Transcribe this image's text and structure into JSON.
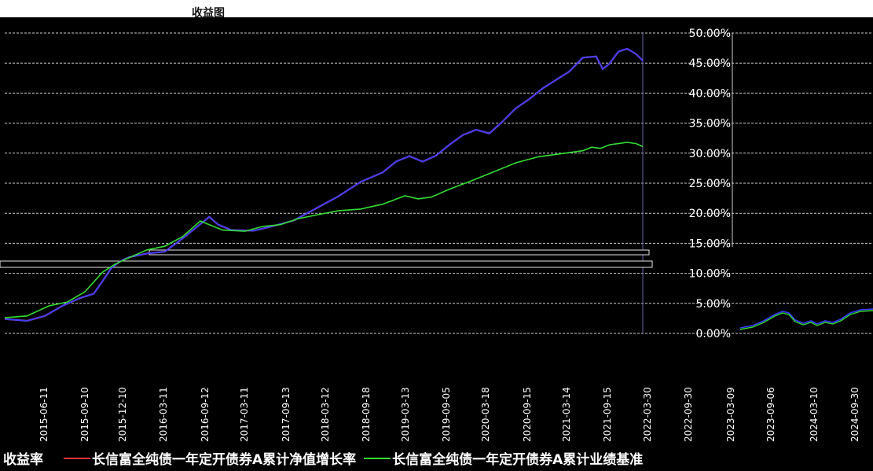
{
  "chart_data": {
    "type": "line",
    "title": "收益图",
    "y_ticks": [
      "0.00%",
      "5.00%",
      "10.00%",
      "15.00%",
      "20.00%",
      "25.00%",
      "30.00%",
      "35.00%",
      "40.00%",
      "45.00%",
      "50.00%"
    ],
    "ylim": [
      0,
      50
    ],
    "x_ticks": [
      "2015-06-11",
      "2015-09-10",
      "2015-12-10",
      "2016-03-11",
      "2016-09-12",
      "2017-03-11",
      "2017-09-13",
      "2018-03-12",
      "2018-09-18",
      "2019-03-13",
      "2019-09-05",
      "2020-03-18",
      "2020-09-15",
      "2021-03-14",
      "2021-09-15",
      "2022-03-30",
      "2022-09-30",
      "2023-03-09",
      "2023-09-06",
      "2024-03-10",
      "2024-09-30"
    ],
    "series": [
      {
        "name": "长信富全纯债一年定开债券A累计净值增长率",
        "color": "#3a3aff",
        "points": [
          [
            0,
            2.4
          ],
          [
            5,
            2.1
          ],
          [
            9,
            2.9
          ],
          [
            13,
            4.6
          ],
          [
            17,
            5.9
          ],
          [
            20,
            6.6
          ],
          [
            22,
            8.7
          ],
          [
            24,
            10.9
          ],
          [
            26,
            12.0
          ],
          [
            28,
            12.7
          ],
          [
            32,
            13.3
          ],
          [
            36,
            13.6
          ],
          [
            40,
            15.8
          ],
          [
            44,
            18.2
          ],
          [
            46,
            19.4
          ],
          [
            48,
            18.1
          ],
          [
            51,
            17.2
          ],
          [
            56,
            17.1
          ],
          [
            60,
            17.8
          ],
          [
            65,
            18.8
          ],
          [
            70,
            20.8
          ],
          [
            75,
            22.8
          ],
          [
            80,
            25.2
          ],
          [
            85,
            26.8
          ],
          [
            88,
            28.6
          ],
          [
            91,
            29.5
          ],
          [
            94,
            28.6
          ],
          [
            97,
            29.6
          ],
          [
            100,
            31.4
          ],
          [
            103,
            33.0
          ],
          [
            106,
            33.9
          ],
          [
            109,
            33.3
          ],
          [
            112,
            35.3
          ],
          [
            115,
            37.5
          ],
          [
            118,
            39.0
          ],
          [
            121,
            40.8
          ],
          [
            124,
            42.2
          ],
          [
            127,
            43.6
          ],
          [
            130,
            45.9
          ],
          [
            133,
            46.1
          ],
          [
            134.5,
            44.0
          ],
          [
            136,
            44.9
          ],
          [
            138,
            46.9
          ],
          [
            140,
            47.4
          ],
          [
            142,
            46.5
          ],
          [
            143.5,
            45.4
          ]
        ]
      },
      {
        "name": "长信富全纯债一年定开债券A累计业绩基准",
        "color": "#33dd33",
        "points": [
          [
            0,
            2.6
          ],
          [
            5,
            2.9
          ],
          [
            10,
            4.6
          ],
          [
            14,
            5.2
          ],
          [
            18,
            6.9
          ],
          [
            22,
            10.2
          ],
          [
            25,
            11.6
          ],
          [
            28,
            12.6
          ],
          [
            32,
            13.9
          ],
          [
            36,
            14.5
          ],
          [
            40,
            16.1
          ],
          [
            44,
            18.7
          ],
          [
            46,
            18.1
          ],
          [
            49,
            17.2
          ],
          [
            54,
            17.0
          ],
          [
            58,
            17.8
          ],
          [
            62,
            18.1
          ],
          [
            66,
            19.1
          ],
          [
            70,
            19.7
          ],
          [
            75,
            20.4
          ],
          [
            80,
            20.7
          ],
          [
            85,
            21.5
          ],
          [
            90,
            22.9
          ],
          [
            93,
            22.4
          ],
          [
            96,
            22.7
          ],
          [
            100,
            24.0
          ],
          [
            105,
            25.4
          ],
          [
            110,
            26.9
          ],
          [
            115,
            28.4
          ],
          [
            120,
            29.4
          ],
          [
            125,
            29.9
          ],
          [
            130,
            30.4
          ],
          [
            132,
            31.0
          ],
          [
            134,
            30.8
          ],
          [
            136,
            31.4
          ],
          [
            138,
            31.6
          ],
          [
            140,
            31.8
          ],
          [
            142,
            31.6
          ],
          [
            143.5,
            31.1
          ]
        ]
      }
    ],
    "legend_prefix": "收益率"
  }
}
